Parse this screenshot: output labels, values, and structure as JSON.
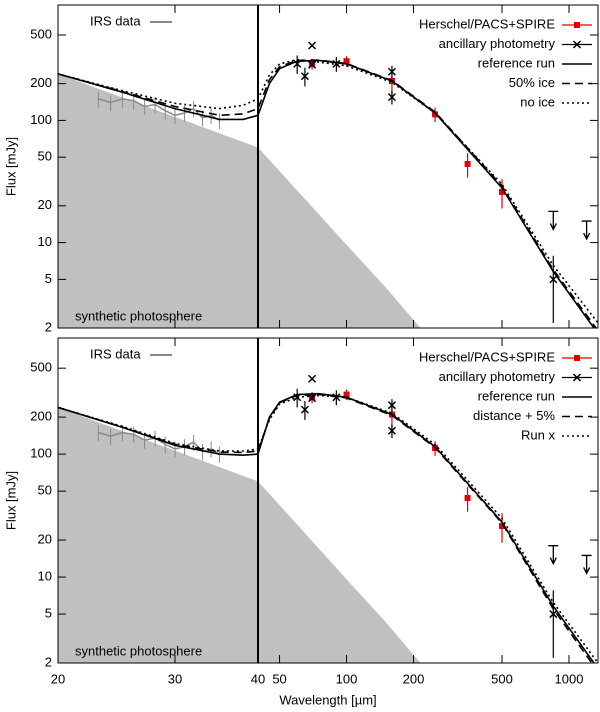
{
  "chart_data": [
    {
      "type": "sed",
      "ylabel": "Flux [mJy]",
      "xlim": [
        20,
        1350
      ],
      "xbreak": 40,
      "xscale": "log",
      "yscale": "log",
      "ylim": [
        2,
        880
      ],
      "yticks": [
        2,
        5,
        10,
        20,
        50,
        100,
        200,
        500
      ],
      "xticks": [
        20,
        30,
        40,
        50,
        100,
        200,
        500,
        1000
      ],
      "series": [
        {
          "name": "synthetic photosphere",
          "style": "area",
          "color": "#c0c0c0",
          "x": [
            20,
            40,
            60,
            100,
            150,
            215
          ],
          "values": [
            240,
            60,
            26.7,
            9.6,
            4.3,
            2
          ]
        },
        {
          "name": "IRS data",
          "style": "spectrum",
          "color": "#888888",
          "x": [
            23,
            24,
            25,
            26,
            27,
            28,
            29,
            30,
            31,
            32,
            33,
            34,
            35
          ],
          "values": [
            150,
            140,
            150,
            145,
            130,
            135,
            120,
            110,
            115,
            125,
            105,
            110,
            100
          ]
        },
        {
          "name": "Herschel/PACS+SPIRE",
          "style": "squares",
          "color": "#e00000",
          "x": [
            70,
            100,
            160,
            250,
            350,
            500
          ],
          "values": [
            290,
            305,
            210,
            112,
            44,
            26
          ],
          "errors": [
            30,
            30,
            50,
            15,
            10,
            7
          ]
        },
        {
          "name": "ancillary photometry",
          "style": "crosses",
          "color": "#000000",
          "x": [
            60,
            65,
            70,
            70,
            90,
            160,
            160,
            850
          ],
          "values": [
            290,
            230,
            410,
            285,
            290,
            250,
            155,
            5
          ],
          "errors": [
            50,
            40,
            0,
            0,
            40,
            30,
            20,
            2.8
          ]
        },
        {
          "name": "reference run",
          "style": "model",
          "dash": "solid",
          "color": "#000000",
          "x": [
            20,
            25,
            30,
            35,
            38,
            40,
            45,
            50,
            60,
            75,
            100,
            160,
            250,
            500,
            850,
            1350
          ],
          "values": [
            240,
            170,
            125,
            102,
            102,
            110,
            200,
            265,
            305,
            310,
            290,
            210,
            115,
            28,
            5.8,
            1.8
          ]
        },
        {
          "name": "50% ice",
          "style": "model",
          "dash": "dashed",
          "color": "#000000",
          "x": [
            20,
            25,
            30,
            35,
            38,
            40,
            45,
            50,
            60,
            75,
            100,
            160,
            250,
            500,
            850,
            1350
          ],
          "values": [
            240,
            172,
            130,
            110,
            113,
            125,
            215,
            275,
            310,
            312,
            292,
            212,
            117,
            29,
            6,
            1.9
          ]
        },
        {
          "name": "no ice",
          "style": "model",
          "dash": "dotted",
          "color": "#000000",
          "x": [
            20,
            25,
            30,
            35,
            38,
            40,
            45,
            50,
            60,
            75,
            100,
            160,
            250,
            500,
            850,
            1350
          ],
          "values": [
            240,
            175,
            138,
            125,
            133,
            150,
            235,
            290,
            315,
            300,
            280,
            205,
            115,
            30,
            6.5,
            2.2
          ]
        }
      ],
      "upper_limits": {
        "color": "#000000",
        "x": [
          850,
          1200
        ],
        "values": [
          18,
          15
        ]
      }
    },
    {
      "type": "sed",
      "ylabel": "Flux [mJy]",
      "xlabel": "Wavelength [µm]",
      "xlim": [
        20,
        1350
      ],
      "xbreak": 40,
      "xscale": "log",
      "yscale": "log",
      "ylim": [
        2,
        880
      ],
      "yticks": [
        2,
        5,
        10,
        20,
        50,
        100,
        200,
        500
      ],
      "xticks": [
        20,
        30,
        40,
        50,
        100,
        200,
        500,
        1000
      ],
      "series": [
        {
          "name": "synthetic photosphere",
          "style": "area",
          "color": "#c0c0c0",
          "x": [
            20,
            40,
            60,
            100,
            150,
            215
          ],
          "values": [
            240,
            60,
            26.7,
            9.6,
            4.3,
            2
          ]
        },
        {
          "name": "IRS data",
          "style": "spectrum",
          "color": "#888888",
          "x": [
            23,
            24,
            25,
            26,
            27,
            28,
            29,
            30,
            31,
            32,
            33,
            34,
            35
          ],
          "values": [
            150,
            140,
            150,
            145,
            130,
            135,
            120,
            110,
            115,
            125,
            105,
            110,
            100
          ]
        },
        {
          "name": "Herschel/PACS+SPIRE",
          "style": "squares",
          "color": "#e00000",
          "x": [
            70,
            100,
            160,
            250,
            350,
            500
          ],
          "values": [
            290,
            305,
            210,
            112,
            44,
            26
          ],
          "errors": [
            30,
            30,
            50,
            15,
            10,
            7
          ]
        },
        {
          "name": "ancillary photometry",
          "style": "crosses",
          "color": "#000000",
          "x": [
            60,
            65,
            70,
            70,
            90,
            160,
            160,
            850
          ],
          "values": [
            290,
            230,
            410,
            285,
            290,
            250,
            155,
            5
          ],
          "errors": [
            50,
            40,
            0,
            0,
            40,
            30,
            20,
            2.8
          ]
        },
        {
          "name": "reference run",
          "style": "model",
          "dash": "solid",
          "color": "#000000",
          "x": [
            20,
            25,
            30,
            35,
            38,
            40,
            45,
            50,
            60,
            75,
            100,
            160,
            250,
            500,
            850,
            1350
          ],
          "values": [
            240,
            165,
            118,
            100,
            98,
            100,
            200,
            265,
            305,
            310,
            290,
            210,
            115,
            28,
            5.8,
            1.8
          ]
        },
        {
          "name": "distance + 5%",
          "style": "model",
          "dash": "dashed",
          "color": "#000000",
          "x": [
            20,
            25,
            30,
            35,
            38,
            40,
            45,
            50,
            60,
            75,
            100,
            160,
            250,
            500,
            850,
            1350
          ],
          "values": [
            240,
            166,
            120,
            104,
            103,
            106,
            195,
            262,
            300,
            306,
            286,
            207,
            113,
            27.5,
            5.5,
            1.7
          ]
        },
        {
          "name": "Run x",
          "style": "model",
          "dash": "dotted",
          "color": "#000000",
          "x": [
            20,
            25,
            30,
            35,
            38,
            40,
            45,
            50,
            60,
            75,
            100,
            160,
            250,
            500,
            850,
            1350
          ],
          "values": [
            240,
            168,
            122,
            106,
            106,
            110,
            190,
            255,
            290,
            300,
            290,
            215,
            120,
            30,
            6.2,
            2
          ]
        }
      ],
      "upper_limits": {
        "color": "#000000",
        "x": [
          850,
          1200
        ],
        "values": [
          18,
          15
        ]
      }
    }
  ]
}
